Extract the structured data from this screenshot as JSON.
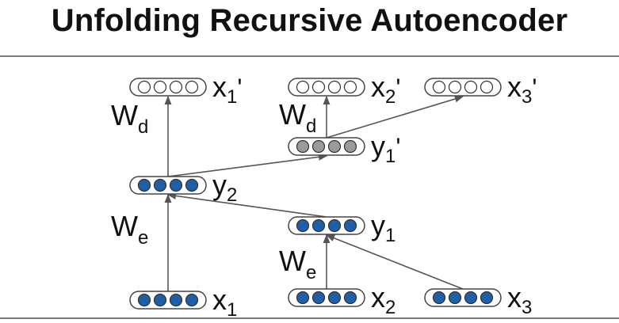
{
  "title": "Unfolding Recursive Autoencoder",
  "colors": {
    "filled_node": "#1f5fa8",
    "hollow_node": "#ffffff",
    "reconstructed_node": "#9a9a9a",
    "edge": "#555555",
    "rule": "#7a7a7a"
  },
  "nodes": [
    {
      "id": "x1",
      "label": "x",
      "sub": "1",
      "prime": "",
      "style": "filled"
    },
    {
      "id": "x2",
      "label": "x",
      "sub": "2",
      "prime": "",
      "style": "filled"
    },
    {
      "id": "x3",
      "label": "x",
      "sub": "3",
      "prime": "",
      "style": "filled"
    },
    {
      "id": "y1",
      "label": "y",
      "sub": "1",
      "prime": "",
      "style": "filled"
    },
    {
      "id": "y2",
      "label": "y",
      "sub": "2",
      "prime": "",
      "style": "filled"
    },
    {
      "id": "y1p",
      "label": "y",
      "sub": "1",
      "prime": "'",
      "style": "gray"
    },
    {
      "id": "x1p",
      "label": "x",
      "sub": "1",
      "prime": "'",
      "style": "hollow"
    },
    {
      "id": "x2p",
      "label": "x",
      "sub": "2",
      "prime": "'",
      "style": "hollow"
    },
    {
      "id": "x3p",
      "label": "x",
      "sub": "3",
      "prime": "'",
      "style": "hollow"
    }
  ],
  "edges": [
    {
      "from": "x1",
      "to": "y2"
    },
    {
      "from": "y1",
      "to": "y2"
    },
    {
      "from": "x2",
      "to": "y1"
    },
    {
      "from": "x3",
      "to": "y1"
    },
    {
      "from": "y2",
      "to": "x1p"
    },
    {
      "from": "y2",
      "to": "y1p"
    },
    {
      "from": "y1p",
      "to": "x2p"
    },
    {
      "from": "y1p",
      "to": "x3p"
    }
  ],
  "weights": [
    {
      "id": "we_left",
      "label": "W",
      "sub": "e"
    },
    {
      "id": "we_right",
      "label": "W",
      "sub": "e"
    },
    {
      "id": "wd_left",
      "label": "W",
      "sub": "d"
    },
    {
      "id": "wd_right",
      "label": "W",
      "sub": "d"
    }
  ]
}
